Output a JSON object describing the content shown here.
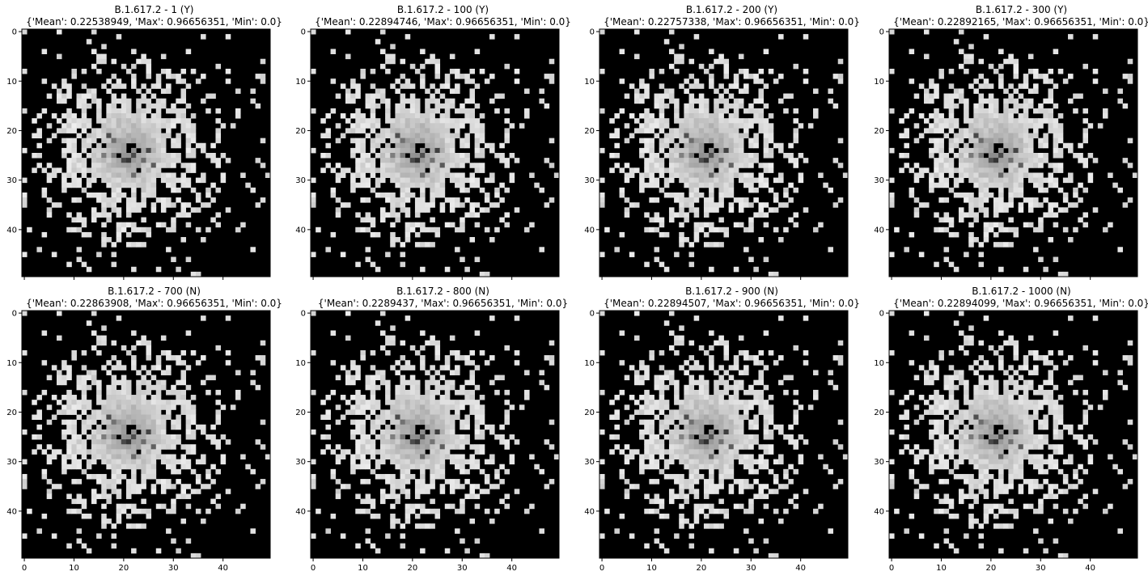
{
  "chart_data": [
    {
      "type": "heatmap",
      "title": "B.1.617.2 - 1 (Y)",
      "subtitle": "{'Mean': 0.22538949, 'Max': 0.96656351, 'Min': 0.0}",
      "variant": 0,
      "show_x_ticks": false,
      "xlim": [
        0,
        49
      ],
      "ylim": [
        0,
        49
      ],
      "xticks": [
        0,
        10,
        20,
        30,
        40
      ],
      "yticks": [
        0,
        10,
        20,
        30,
        40
      ],
      "colormap": "gray"
    },
    {
      "type": "heatmap",
      "title": "B.1.617.2 - 100 (Y)",
      "subtitle": "{'Mean': 0.22894746, 'Max': 0.96656351, 'Min': 0.0}",
      "variant": 1,
      "show_x_ticks": false,
      "xlim": [
        0,
        49
      ],
      "ylim": [
        0,
        49
      ],
      "xticks": [
        0,
        10,
        20,
        30,
        40
      ],
      "yticks": [
        0,
        10,
        20,
        30,
        40
      ],
      "colormap": "gray"
    },
    {
      "type": "heatmap",
      "title": "B.1.617.2 - 200 (Y)",
      "subtitle": "{'Mean': 0.22757338, 'Max': 0.96656351, 'Min': 0.0}",
      "variant": 2,
      "show_x_ticks": false,
      "xlim": [
        0,
        49
      ],
      "ylim": [
        0,
        49
      ],
      "xticks": [
        0,
        10,
        20,
        30,
        40
      ],
      "yticks": [
        0,
        10,
        20,
        30,
        40
      ],
      "colormap": "gray"
    },
    {
      "type": "heatmap",
      "title": "B.1.617.2 - 300 (Y)",
      "subtitle": "{'Mean': 0.22892165, 'Max': 0.96656351, 'Min': 0.0}",
      "variant": 3,
      "show_x_ticks": false,
      "xlim": [
        0,
        49
      ],
      "ylim": [
        0,
        49
      ],
      "xticks": [
        0,
        10,
        20,
        30,
        40
      ],
      "yticks": [
        0,
        10,
        20,
        30,
        40
      ],
      "colormap": "gray"
    },
    {
      "type": "heatmap",
      "title": "B.1.617.2 - 700 (N)",
      "subtitle": "{'Mean': 0.22863908, 'Max': 0.96656351, 'Min': 0.0}",
      "variant": 4,
      "show_x_ticks": true,
      "xlim": [
        0,
        49
      ],
      "ylim": [
        0,
        49
      ],
      "xticks": [
        0,
        10,
        20,
        30,
        40
      ],
      "yticks": [
        0,
        10,
        20,
        30,
        40
      ],
      "colormap": "gray"
    },
    {
      "type": "heatmap",
      "title": "B.1.617.2 - 800 (N)",
      "subtitle": "{'Mean': 0.2289437, 'Max': 0.96656351, 'Min': 0.0}",
      "variant": 5,
      "show_x_ticks": true,
      "xlim": [
        0,
        49
      ],
      "ylim": [
        0,
        49
      ],
      "xticks": [
        0,
        10,
        20,
        30,
        40
      ],
      "yticks": [
        0,
        10,
        20,
        30,
        40
      ],
      "colormap": "gray"
    },
    {
      "type": "heatmap",
      "title": "B.1.617.2 - 900 (N)",
      "subtitle": "{'Mean': 0.22894507, 'Max': 0.96656351, 'Min': 0.0}",
      "variant": 6,
      "show_x_ticks": true,
      "xlim": [
        0,
        49
      ],
      "ylim": [
        0,
        49
      ],
      "xticks": [
        0,
        10,
        20,
        30,
        40
      ],
      "yticks": [
        0,
        10,
        20,
        30,
        40
      ],
      "colormap": "gray"
    },
    {
      "type": "heatmap",
      "title": "B.1.617.2 - 1000 (N)",
      "subtitle": "{'Mean': 0.22894099, 'Max': 0.96656351, 'Min': 0.0}",
      "variant": 7,
      "show_x_ticks": true,
      "xlim": [
        0,
        49
      ],
      "ylim": [
        0,
        49
      ],
      "xticks": [
        0,
        10,
        20,
        30,
        40
      ],
      "yticks": [
        0,
        10,
        20,
        30,
        40
      ],
      "colormap": "gray"
    }
  ]
}
